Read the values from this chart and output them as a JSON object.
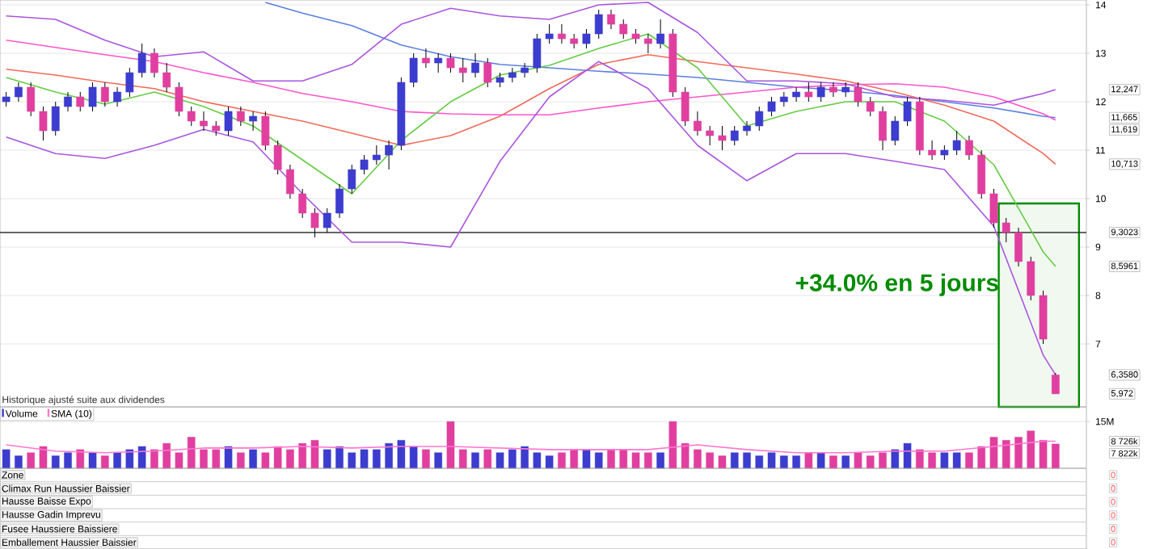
{
  "chart_data": [
    {
      "type": "candlestick",
      "categories": [
        null,
        null,
        null,
        null,
        null,
        null,
        null,
        null,
        null,
        null,
        null,
        null,
        null,
        null,
        null,
        null,
        null,
        null,
        null,
        null,
        null,
        null,
        null,
        null,
        null,
        null,
        null,
        null,
        null,
        null,
        null,
        null,
        null,
        null,
        null,
        null,
        null,
        null,
        null,
        null,
        null,
        null,
        null,
        null,
        null,
        null,
        null,
        null,
        null,
        null,
        null,
        null,
        null,
        null,
        null,
        null,
        null,
        null,
        null,
        null,
        null,
        null,
        null,
        null,
        null,
        null,
        null,
        null,
        null,
        null,
        null,
        null,
        null,
        null,
        null,
        null,
        null,
        null,
        null,
        null,
        null,
        null,
        null,
        null,
        null,
        null
      ],
      "ohlc": [
        [
          12.0,
          12.2,
          11.9,
          12.1
        ],
        [
          12.1,
          12.4,
          12.0,
          12.3
        ],
        [
          12.3,
          12.4,
          11.7,
          11.8
        ],
        [
          11.8,
          11.9,
          11.2,
          11.4
        ],
        [
          11.4,
          12.0,
          11.3,
          11.9
        ],
        [
          11.9,
          12.2,
          11.8,
          12.1
        ],
        [
          12.1,
          12.2,
          11.8,
          11.9
        ],
        [
          11.9,
          12.4,
          11.8,
          12.3
        ],
        [
          12.3,
          12.4,
          11.9,
          12.0
        ],
        [
          12.0,
          12.3,
          11.9,
          12.2
        ],
        [
          12.2,
          12.7,
          12.1,
          12.6
        ],
        [
          12.6,
          13.2,
          12.5,
          13.0
        ],
        [
          13.0,
          13.1,
          12.5,
          12.6
        ],
        [
          12.6,
          12.8,
          12.2,
          12.3
        ],
        [
          12.3,
          12.4,
          11.7,
          11.8
        ],
        [
          11.8,
          11.9,
          11.5,
          11.6
        ],
        [
          11.6,
          11.8,
          11.4,
          11.5
        ],
        [
          11.5,
          11.6,
          11.3,
          11.4
        ],
        [
          11.4,
          11.9,
          11.3,
          11.8
        ],
        [
          11.8,
          11.9,
          11.5,
          11.6
        ],
        [
          11.6,
          11.8,
          11.4,
          11.7
        ],
        [
          11.7,
          11.8,
          11.0,
          11.1
        ],
        [
          11.1,
          11.2,
          10.5,
          10.6
        ],
        [
          10.6,
          10.7,
          10.0,
          10.1
        ],
        [
          10.1,
          10.2,
          9.6,
          9.7
        ],
        [
          9.7,
          9.8,
          9.2,
          9.4
        ],
        [
          9.4,
          9.8,
          9.3,
          9.7
        ],
        [
          9.7,
          10.3,
          9.6,
          10.2
        ],
        [
          10.2,
          10.7,
          10.1,
          10.6
        ],
        [
          10.6,
          10.9,
          10.5,
          10.8
        ],
        [
          10.8,
          11.1,
          10.7,
          10.9
        ],
        [
          10.9,
          11.2,
          10.6,
          11.1
        ],
        [
          11.1,
          12.5,
          11.0,
          12.4
        ],
        [
          12.4,
          13.0,
          12.3,
          12.9
        ],
        [
          12.9,
          13.1,
          12.7,
          12.8
        ],
        [
          12.8,
          13.0,
          12.6,
          12.9
        ],
        [
          12.9,
          13.0,
          12.6,
          12.7
        ],
        [
          12.7,
          12.9,
          12.4,
          12.6
        ],
        [
          12.6,
          13.0,
          12.5,
          12.8
        ],
        [
          12.8,
          12.9,
          12.3,
          12.4
        ],
        [
          12.4,
          12.6,
          12.3,
          12.5
        ],
        [
          12.5,
          12.7,
          12.4,
          12.6
        ],
        [
          12.6,
          12.8,
          12.5,
          12.7
        ],
        [
          12.7,
          13.4,
          12.6,
          13.3
        ],
        [
          13.3,
          13.6,
          13.2,
          13.4
        ],
        [
          13.4,
          13.6,
          13.2,
          13.3
        ],
        [
          13.3,
          13.4,
          13.1,
          13.2
        ],
        [
          13.2,
          13.5,
          13.1,
          13.4
        ],
        [
          13.4,
          13.9,
          13.3,
          13.8
        ],
        [
          13.8,
          13.9,
          13.5,
          13.6
        ],
        [
          13.6,
          13.7,
          13.3,
          13.4
        ],
        [
          13.4,
          13.5,
          13.2,
          13.3
        ],
        [
          13.3,
          13.4,
          13.0,
          13.2
        ],
        [
          13.2,
          13.7,
          13.1,
          13.4
        ],
        [
          13.4,
          13.5,
          12.1,
          12.2
        ],
        [
          12.2,
          12.3,
          11.5,
          11.6
        ],
        [
          11.6,
          11.8,
          11.3,
          11.4
        ],
        [
          11.4,
          11.5,
          11.1,
          11.3
        ],
        [
          11.3,
          11.5,
          11.0,
          11.2
        ],
        [
          11.2,
          11.5,
          11.1,
          11.4
        ],
        [
          11.4,
          11.6,
          11.3,
          11.5
        ],
        [
          11.5,
          11.9,
          11.4,
          11.8
        ],
        [
          11.8,
          12.1,
          11.7,
          12.0
        ],
        [
          12.0,
          12.2,
          11.9,
          12.1
        ],
        [
          12.1,
          12.3,
          12.0,
          12.2
        ],
        [
          12.2,
          12.4,
          12.0,
          12.1
        ],
        [
          12.1,
          12.4,
          12.0,
          12.3
        ],
        [
          12.3,
          12.4,
          12.1,
          12.2
        ],
        [
          12.2,
          12.4,
          12.1,
          12.3
        ],
        [
          12.3,
          12.4,
          11.9,
          12.0
        ],
        [
          12.0,
          12.1,
          11.7,
          11.8
        ],
        [
          11.8,
          11.9,
          11.0,
          11.2
        ],
        [
          11.2,
          11.7,
          11.1,
          11.6
        ],
        [
          11.6,
          12.1,
          11.5,
          12.0
        ],
        [
          12.0,
          12.1,
          10.9,
          11.0
        ],
        [
          11.0,
          11.2,
          10.8,
          10.9
        ],
        [
          10.9,
          11.1,
          10.8,
          11.0
        ],
        [
          11.0,
          11.4,
          10.9,
          11.2
        ],
        [
          11.2,
          11.3,
          10.8,
          10.9
        ],
        [
          10.9,
          11.0,
          10.0,
          10.1
        ],
        [
          10.1,
          10.2,
          9.4,
          9.5
        ],
        [
          9.5,
          9.6,
          9.1,
          9.3
        ],
        [
          9.3,
          9.4,
          8.6,
          8.7
        ],
        [
          8.7,
          8.8,
          7.9,
          8.0
        ],
        [
          8.0,
          8.1,
          7.0,
          7.1
        ],
        [
          6.36,
          6.4,
          5.97,
          5.97
        ]
      ],
      "colors": [
        "#3c3ccf",
        "#3c3ccf",
        "#e03fa0",
        "#e03fa0",
        "#3c3ccf",
        "#3c3ccf",
        "#e03fa0",
        "#3c3ccf",
        "#e03fa0",
        "#3c3ccf",
        "#3c3ccf",
        "#3c3ccf",
        "#e03fa0",
        "#e03fa0",
        "#e03fa0",
        "#e03fa0",
        "#e03fa0",
        "#e03fa0",
        "#3c3ccf",
        "#e03fa0",
        "#3c3ccf",
        "#e03fa0",
        "#e03fa0",
        "#e03fa0",
        "#e03fa0",
        "#e03fa0",
        "#3c3ccf",
        "#3c3ccf",
        "#3c3ccf",
        "#3c3ccf",
        "#3c3ccf",
        "#3c3ccf",
        "#3c3ccf",
        "#3c3ccf",
        "#e03fa0",
        "#3c3ccf",
        "#e03fa0",
        "#e03fa0",
        "#3c3ccf",
        "#e03fa0",
        "#3c3ccf",
        "#3c3ccf",
        "#3c3ccf",
        "#3c3ccf",
        "#3c3ccf",
        "#e03fa0",
        "#e03fa0",
        "#3c3ccf",
        "#3c3ccf",
        "#e03fa0",
        "#e03fa0",
        "#e03fa0",
        "#e03fa0",
        "#3c3ccf",
        "#e03fa0",
        "#e03fa0",
        "#e03fa0",
        "#e03fa0",
        "#e03fa0",
        "#3c3ccf",
        "#3c3ccf",
        "#3c3ccf",
        "#3c3ccf",
        "#3c3ccf",
        "#3c3ccf",
        "#e03fa0",
        "#3c3ccf",
        "#e03fa0",
        "#3c3ccf",
        "#e03fa0",
        "#e03fa0",
        "#e03fa0",
        "#3c3ccf",
        "#3c3ccf",
        "#e03fa0",
        "#e03fa0",
        "#3c3ccf",
        "#3c3ccf",
        "#e03fa0",
        "#e03fa0",
        "#e03fa0",
        "#e03fa0",
        "#e03fa0",
        "#e03fa0",
        "#e03fa0",
        "#e03fa0"
      ],
      "series": [
        {
          "type": "line",
          "color": "#5b7fe0",
          "values": [
            null,
            null,
            null,
            null,
            null,
            null,
            null,
            null,
            null,
            null,
            null,
            null,
            null,
            null,
            null,
            null,
            null,
            null,
            null,
            null,
            null,
            14.05,
            null,
            null,
            13.83,
            null,
            null,
            null,
            13.57,
            null,
            null,
            null,
            13.17,
            null,
            null,
            null,
            12.93,
            null,
            null,
            null,
            12.77,
            null,
            null,
            null,
            12.7,
            null,
            null,
            null,
            12.63,
            null,
            null,
            null,
            12.57,
            null,
            null,
            null,
            12.5,
            null,
            null,
            null,
            12.4,
            null,
            null,
            null,
            12.3,
            null,
            null,
            null,
            12.23,
            null,
            null,
            null,
            12.13,
            null,
            null,
            null,
            12.0,
            null,
            null,
            null,
            11.87,
            null,
            null,
            null,
            11.7,
            11.67
          ]
        },
        {
          "type": "line",
          "color": "#f06a5a",
          "values": [
            12.67,
            null,
            null,
            null,
            12.55,
            null,
            null,
            null,
            12.4,
            null,
            null,
            null,
            12.27,
            null,
            null,
            null,
            12.0,
            null,
            null,
            null,
            11.8,
            null,
            null,
            null,
            11.6,
            null,
            null,
            null,
            11.35,
            null,
            null,
            null,
            11.1,
            null,
            null,
            null,
            11.3,
            null,
            null,
            null,
            11.7,
            null,
            null,
            null,
            12.27,
            null,
            null,
            null,
            12.77,
            null,
            null,
            null,
            12.97,
            null,
            null,
            null,
            12.83,
            null,
            null,
            null,
            12.7,
            null,
            null,
            null,
            12.57,
            null,
            null,
            null,
            12.43,
            null,
            null,
            null,
            12.2,
            null,
            null,
            null,
            11.93,
            null,
            null,
            null,
            11.6,
            null,
            null,
            null,
            10.93,
            10.71
          ]
        },
        {
          "type": "line",
          "color": "#ff55cc",
          "values": [
            13.27,
            null,
            null,
            null,
            13.12,
            null,
            null,
            null,
            12.97,
            null,
            null,
            null,
            12.83,
            null,
            null,
            null,
            12.6,
            null,
            null,
            null,
            12.4,
            null,
            null,
            null,
            12.17,
            null,
            null,
            null,
            12.0,
            null,
            null,
            null,
            11.8,
            null,
            null,
            null,
            11.75,
            null,
            null,
            null,
            11.73,
            null,
            null,
            null,
            11.73,
            null,
            null,
            null,
            11.87,
            null,
            null,
            null,
            12.0,
            null,
            null,
            null,
            12.1,
            null,
            null,
            null,
            12.2,
            null,
            null,
            null,
            12.3,
            null,
            null,
            null,
            12.35,
            null,
            null,
            null,
            12.37,
            null,
            null,
            null,
            12.3,
            null,
            null,
            null,
            12.1,
            null,
            null,
            null,
            11.75,
            11.62
          ]
        },
        {
          "type": "line",
          "color": "#66cc44",
          "values": [
            12.5,
            null,
            null,
            null,
            12.2,
            null,
            null,
            null,
            11.95,
            null,
            null,
            null,
            12.2,
            null,
            null,
            null,
            11.9,
            null,
            null,
            null,
            11.5,
            null,
            null,
            null,
            10.8,
            null,
            null,
            null,
            10.1,
            null,
            null,
            null,
            11.2,
            null,
            null,
            null,
            12.0,
            null,
            null,
            null,
            12.55,
            null,
            null,
            null,
            12.75,
            null,
            null,
            null,
            13.1,
            null,
            null,
            null,
            13.4,
            null,
            null,
            null,
            12.7,
            null,
            null,
            null,
            11.5,
            null,
            null,
            null,
            11.8,
            null,
            null,
            null,
            12.0,
            null,
            null,
            null,
            12.0,
            null,
            null,
            null,
            11.6,
            null,
            null,
            null,
            10.7,
            null,
            null,
            null,
            8.9,
            8.6
          ]
        },
        {
          "type": "line",
          "color": "#aa55dd",
          "values": [
            13.77,
            null,
            null,
            null,
            13.7,
            null,
            null,
            null,
            13.27,
            null,
            null,
            null,
            12.93,
            null,
            null,
            null,
            13.03,
            null,
            null,
            null,
            12.43,
            null,
            null,
            null,
            12.43,
            null,
            null,
            null,
            12.77,
            null,
            null,
            null,
            13.6,
            null,
            null,
            null,
            13.93,
            null,
            null,
            null,
            13.77,
            null,
            null,
            null,
            13.7,
            null,
            null,
            null,
            14.0,
            null,
            null,
            null,
            14.05,
            null,
            null,
            null,
            13.43,
            null,
            null,
            null,
            12.43,
            null,
            null,
            null,
            12.43,
            null,
            null,
            null,
            12.37,
            null,
            null,
            null,
            12.1,
            null,
            null,
            null,
            12.03,
            null,
            null,
            null,
            11.93,
            null,
            null,
            null,
            12.17,
            12.25
          ]
        },
        {
          "type": "line",
          "color": "#aa55dd",
          "values": [
            11.27,
            null,
            null,
            null,
            10.93,
            null,
            null,
            null,
            10.83,
            null,
            null,
            null,
            11.1,
            null,
            null,
            null,
            11.43,
            null,
            null,
            null,
            11.17,
            null,
            null,
            null,
            10.1,
            null,
            null,
            null,
            9.1,
            null,
            null,
            null,
            9.1,
            null,
            null,
            null,
            9.0,
            null,
            null,
            null,
            10.77,
            null,
            null,
            null,
            12.1,
            null,
            null,
            null,
            12.83,
            null,
            null,
            null,
            12.27,
            null,
            null,
            null,
            11.1,
            null,
            null,
            null,
            10.37,
            null,
            null,
            null,
            10.93,
            null,
            null,
            null,
            10.93,
            null,
            null,
            null,
            10.77,
            null,
            null,
            null,
            10.6,
            null,
            null,
            null,
            9.43,
            null,
            null,
            null,
            6.77,
            6.36
          ]
        }
      ],
      "ylim": [
        5.7,
        14.1
      ],
      "yticks": [
        7,
        8,
        9,
        10,
        11,
        12,
        13,
        14
      ],
      "grid": "y",
      "ref_lines": [
        {
          "axis": "y",
          "value": 9.3,
          "color": "#333333"
        }
      ],
      "annotations": [
        "+34.0% en 5 jours",
        "Historique ajusté suite aux dividendes",
        "11,665",
        "10,713",
        "11,619",
        "8,5961",
        "12,247",
        "6,3580",
        "9,3023",
        "5,972"
      ]
    },
    {
      "type": "bar",
      "categories": [
        null,
        null,
        null,
        null,
        null,
        null,
        null,
        null,
        null,
        null,
        null,
        null,
        null,
        null,
        null,
        null,
        null,
        null,
        null,
        null,
        null,
        null,
        null,
        null,
        null,
        null,
        null,
        null,
        null,
        null,
        null,
        null,
        null,
        null,
        null,
        null,
        null,
        null,
        null,
        null,
        null,
        null,
        null,
        null,
        null,
        null,
        null,
        null,
        null,
        null,
        null,
        null,
        null,
        null,
        null,
        null,
        null,
        null,
        null,
        null,
        null,
        null,
        null,
        null,
        null,
        null,
        null,
        null,
        null,
        null,
        null,
        null,
        null,
        null,
        null,
        null,
        null,
        null,
        null,
        null,
        null,
        null,
        null,
        null,
        null,
        null
      ],
      "series": [
        {
          "name": "Volume",
          "type": "bar",
          "values": [
            6,
            4,
            5,
            7,
            4,
            5,
            6,
            5,
            4,
            5,
            6,
            7,
            6,
            8,
            5,
            10,
            6,
            6,
            7,
            5,
            6,
            5,
            7,
            6,
            8,
            9,
            6,
            7,
            5,
            6,
            6,
            8,
            9,
            7,
            6,
            5,
            15,
            6,
            5,
            6,
            5,
            6,
            7,
            5,
            4,
            5,
            6,
            6,
            5,
            6,
            6,
            5,
            5,
            5,
            15,
            8,
            6,
            5,
            4,
            5,
            5,
            4,
            5,
            4,
            4,
            5,
            5,
            4,
            4,
            5,
            4,
            5,
            6,
            8,
            6,
            5,
            5,
            5,
            5,
            7,
            10,
            9,
            10,
            12,
            9,
            7.8
          ],
          "colors": [
            "#3c3ccf",
            "#3c3ccf",
            "#e03fa0",
            "#e03fa0",
            "#3c3ccf",
            "#3c3ccf",
            "#e03fa0",
            "#3c3ccf",
            "#e03fa0",
            "#3c3ccf",
            "#3c3ccf",
            "#3c3ccf",
            "#e03fa0",
            "#e03fa0",
            "#e03fa0",
            "#e03fa0",
            "#e03fa0",
            "#e03fa0",
            "#3c3ccf",
            "#e03fa0",
            "#3c3ccf",
            "#e03fa0",
            "#e03fa0",
            "#e03fa0",
            "#e03fa0",
            "#e03fa0",
            "#3c3ccf",
            "#3c3ccf",
            "#3c3ccf",
            "#3c3ccf",
            "#3c3ccf",
            "#3c3ccf",
            "#3c3ccf",
            "#3c3ccf",
            "#e03fa0",
            "#3c3ccf",
            "#e03fa0",
            "#e03fa0",
            "#3c3ccf",
            "#e03fa0",
            "#3c3ccf",
            "#3c3ccf",
            "#3c3ccf",
            "#3c3ccf",
            "#3c3ccf",
            "#e03fa0",
            "#e03fa0",
            "#3c3ccf",
            "#3c3ccf",
            "#e03fa0",
            "#e03fa0",
            "#e03fa0",
            "#e03fa0",
            "#3c3ccf",
            "#e03fa0",
            "#e03fa0",
            "#e03fa0",
            "#e03fa0",
            "#e03fa0",
            "#3c3ccf",
            "#3c3ccf",
            "#3c3ccf",
            "#3c3ccf",
            "#3c3ccf",
            "#3c3ccf",
            "#e03fa0",
            "#3c3ccf",
            "#e03fa0",
            "#3c3ccf",
            "#e03fa0",
            "#e03fa0",
            "#e03fa0",
            "#3c3ccf",
            "#3c3ccf",
            "#e03fa0",
            "#e03fa0",
            "#3c3ccf",
            "#3c3ccf",
            "#e03fa0",
            "#e03fa0",
            "#e03fa0",
            "#e03fa0",
            "#e03fa0",
            "#e03fa0",
            "#e03fa0",
            "#e03fa0"
          ]
        },
        {
          "name": "SMA (10)",
          "type": "line",
          "color": "#ff77d0",
          "values": [
            7.5,
            null,
            null,
            null,
            5.5,
            null,
            null,
            null,
            5,
            null,
            null,
            null,
            5.5,
            null,
            null,
            null,
            6.5,
            null,
            null,
            null,
            6.5,
            null,
            null,
            null,
            7,
            null,
            null,
            null,
            6.5,
            null,
            null,
            null,
            7,
            null,
            null,
            null,
            7,
            null,
            null,
            null,
            6.5,
            null,
            null,
            null,
            6,
            null,
            null,
            null,
            6,
            null,
            null,
            null,
            6,
            null,
            null,
            null,
            7.5,
            null,
            null,
            null,
            6,
            null,
            null,
            null,
            5,
            null,
            null,
            null,
            5,
            null,
            null,
            null,
            5.5,
            null,
            null,
            null,
            5.5,
            null,
            null,
            null,
            7,
            null,
            null,
            null,
            8.7,
            8.7
          ]
        }
      ],
      "ylim": [
        0,
        19.7
      ],
      "yticks": [
        {
          "value": 15,
          "label": "15M"
        }
      ],
      "grid": "y",
      "legend": "top left",
      "annotations": [
        "7 822k",
        "8 726k"
      ]
    },
    {
      "type": "other",
      "categories": [
        "Zone",
        "Climax Run Haussier Baissier",
        "Hausse Baisse Expo",
        "Hausse Gadin Imprevu",
        "Fusee Haussiere Baissiere",
        "Emballement Haussier Baissier"
      ],
      "values": [
        0,
        0,
        0,
        0,
        0,
        0
      ],
      "value_labels": [
        "0",
        "0",
        "0",
        "0",
        "0",
        "0"
      ]
    }
  ]
}
